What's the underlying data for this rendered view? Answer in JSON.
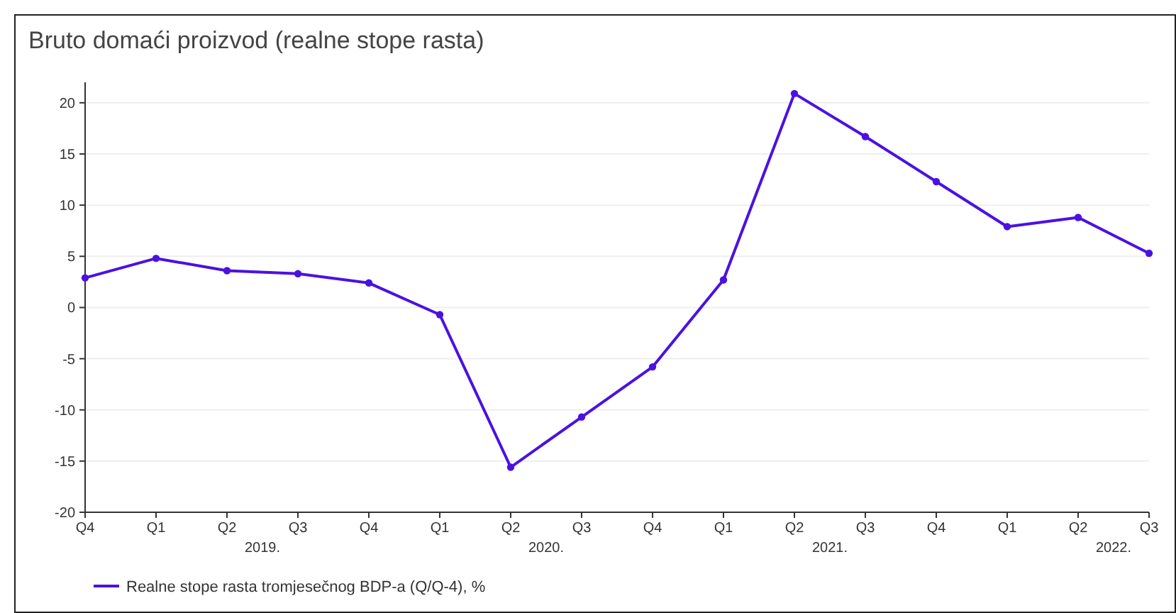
{
  "chart_data": {
    "type": "line",
    "title": "Bruto domaći proizvod (realne stope rasta)",
    "categories": [
      "Q4",
      "Q1",
      "Q2",
      "Q3",
      "Q4",
      "Q1",
      "Q2",
      "Q3",
      "Q4",
      "Q1",
      "Q2",
      "Q3",
      "Q4",
      "Q1",
      "Q2",
      "Q3"
    ],
    "annotations": [
      "2019.",
      "2020.",
      "2021.",
      "2022."
    ],
    "series": [
      {
        "name": "Realne stope rasta tromjesečnog BDP-a (Q/Q-4), %",
        "color": "#4a12e0",
        "values": [
          2.9,
          4.8,
          3.6,
          3.3,
          2.4,
          -0.7,
          -15.6,
          -10.7,
          -5.8,
          2.7,
          20.9,
          16.7,
          12.3,
          7.9,
          8.8,
          5.3
        ]
      }
    ],
    "ylim": [
      -20,
      22
    ],
    "yticks": [
      -20,
      -15,
      -10,
      -5,
      0,
      5,
      10,
      15,
      20
    ],
    "grid": "y",
    "legend": "bottom left",
    "marker": "circle",
    "line_style": "solid"
  }
}
